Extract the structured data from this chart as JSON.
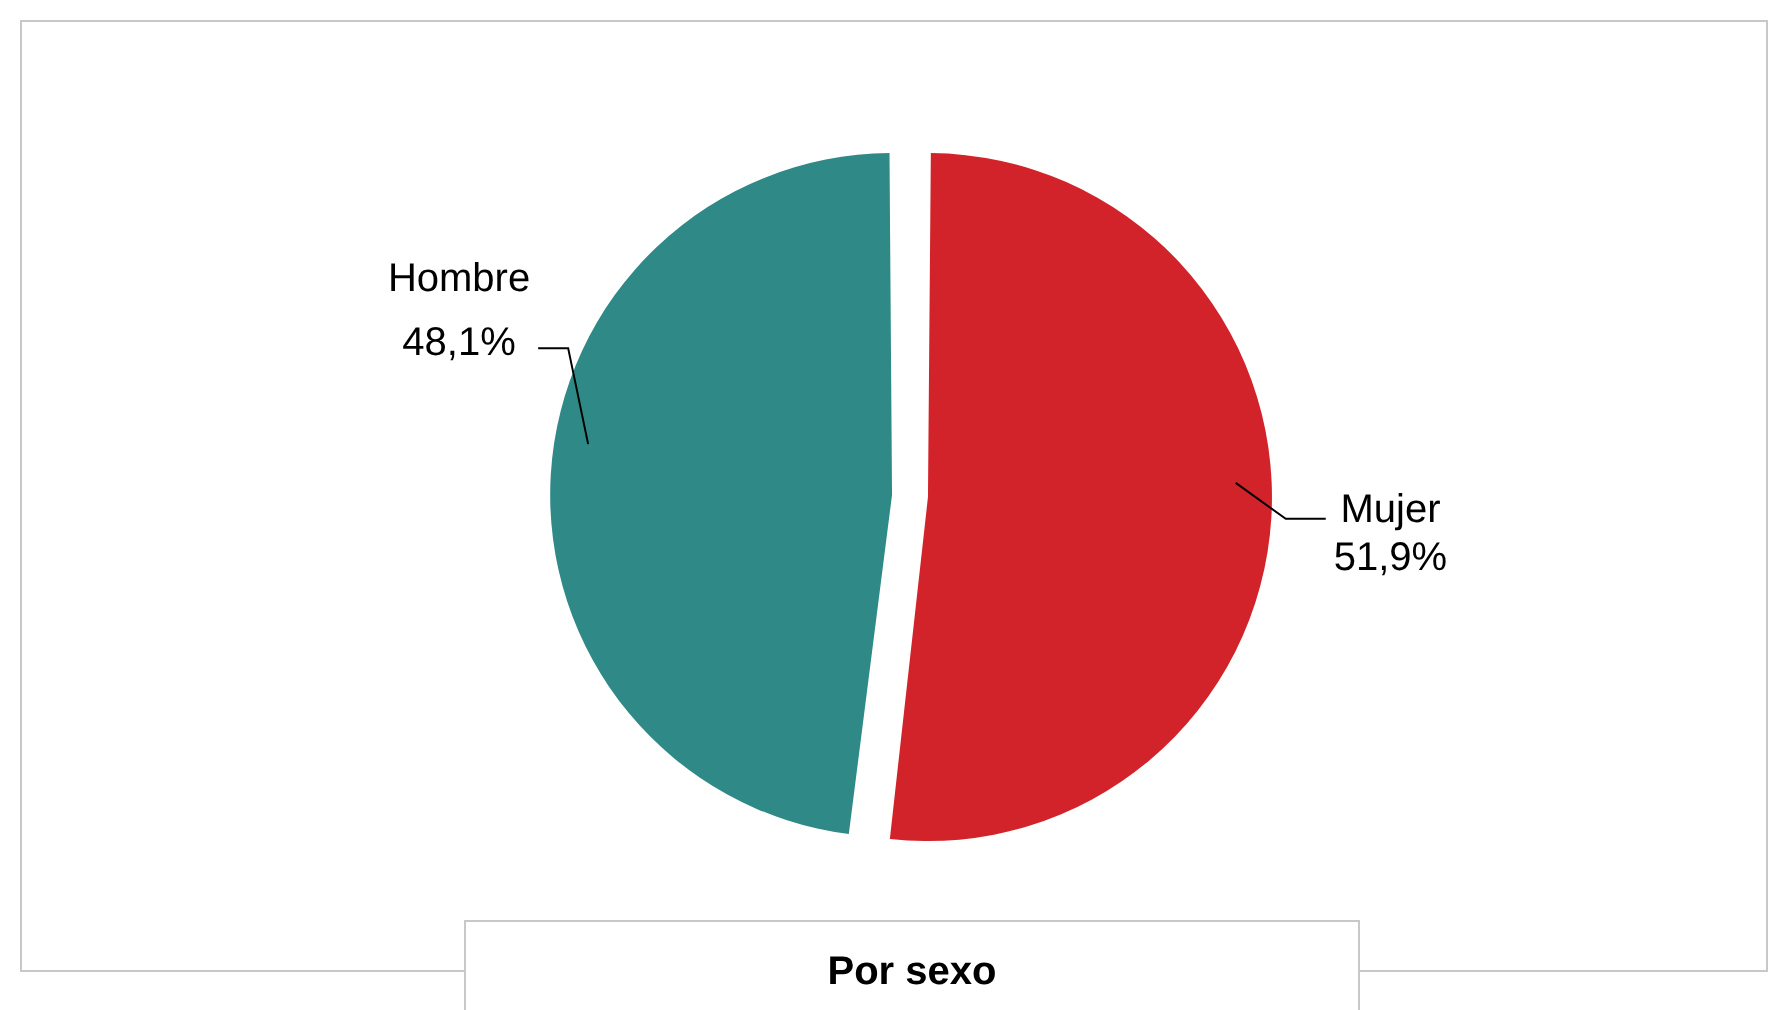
{
  "chart_data": {
    "type": "pie",
    "title": "Por sexo",
    "categories": [
      "Mujer",
      "Hombre"
    ],
    "values": [
      51.9,
      48.1
    ],
    "colors": [
      "#d3232a",
      "#2f8a87"
    ],
    "value_labels": [
      "51,9%",
      "48,1%"
    ],
    "legend": false
  }
}
